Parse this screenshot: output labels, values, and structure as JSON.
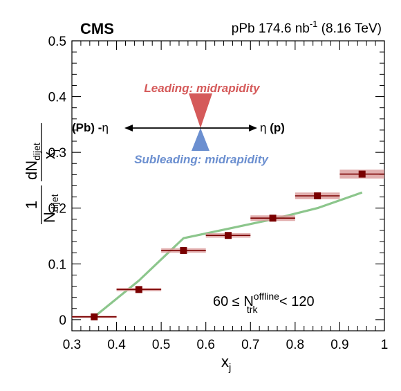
{
  "chart_data": {
    "type": "scatter",
    "experiment": "CMS",
    "collision_label": {
      "base": "pPb 174.6 nb",
      "sup": "-1",
      "energy": " (8.16 TeV)"
    },
    "xlabel": {
      "main": "x",
      "sub": "j"
    },
    "ylabel": {
      "one": "1",
      "n_main": "N",
      "n_sub": "dijet",
      "dn_main": "dN",
      "dn_sub": "dijet",
      "dx_main": "x",
      "dx_sub": "j"
    },
    "xlim": [
      0.3,
      1.0
    ],
    "ylim": [
      -0.02,
      0.5
    ],
    "x_ticks": [
      0.3,
      0.4,
      0.5,
      0.6,
      0.7,
      0.8,
      0.9,
      1.0
    ],
    "x_tick_labels": [
      "0.3",
      "0.4",
      "0.5",
      "0.6",
      "0.7",
      "0.8",
      "0.9",
      "1"
    ],
    "y_ticks": [
      0,
      0.1,
      0.2,
      0.3,
      0.4,
      0.5
    ],
    "y_tick_labels": [
      "0",
      "0.1",
      "0.2",
      "0.3",
      "0.4",
      "0.5"
    ],
    "grid": false,
    "series": [
      {
        "kind": "data",
        "marker": "square",
        "color": "#7a0000",
        "syst_color": "#d99a9a",
        "x": [
          0.35,
          0.45,
          0.55,
          0.65,
          0.75,
          0.85,
          0.95
        ],
        "x_halfwidth": [
          0.05,
          0.05,
          0.05,
          0.05,
          0.05,
          0.05,
          0.05
        ],
        "y": [
          0.005,
          0.054,
          0.124,
          0.151,
          0.182,
          0.222,
          0.261
        ],
        "y_syst": [
          0.002,
          0.003,
          0.004,
          0.004,
          0.005,
          0.006,
          0.008
        ]
      },
      {
        "kind": "model",
        "color": "#8cc68c",
        "x": [
          0.35,
          0.45,
          0.55,
          0.65,
          0.75,
          0.85,
          0.95
        ],
        "y": [
          0.005,
          0.07,
          0.146,
          0.163,
          0.18,
          0.2,
          0.228
        ]
      }
    ],
    "annotations": {
      "leading": "Leading: midrapidity",
      "subleading": "Subleading: midrapidity",
      "left_label": "(Pb) -",
      "eta": "η",
      "right_label": " (p)",
      "lead_color": "#d55a5a",
      "sub_color": "#6b8fd0",
      "cut_lo": "60 ≤ N",
      "cut_sup": "offline",
      "cut_sub": "trk",
      "cut_hi": " < 120"
    }
  }
}
